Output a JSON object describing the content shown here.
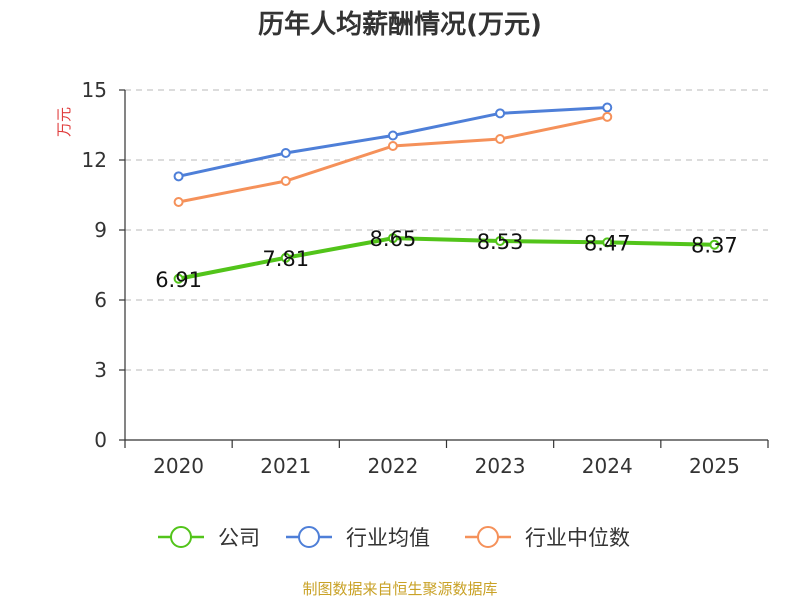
{
  "chart_data": {
    "type": "line",
    "title": "历年人均薪酬情况(万元)",
    "ylabel": "万元",
    "xlabel": "",
    "categories": [
      "2020",
      "2021",
      "2022",
      "2023",
      "2024",
      "2025"
    ],
    "ylim": [
      0,
      15
    ],
    "yticks": [
      "0",
      "3",
      "6",
      "9",
      "12",
      "15"
    ],
    "grid": "horizontal dashed",
    "legend_position": "bottom",
    "series": [
      {
        "name": "公司",
        "color": "#52c41a",
        "values": [
          6.91,
          7.81,
          8.65,
          8.53,
          8.47,
          8.37
        ],
        "labels": [
          "6.91",
          "7.81",
          "8.65",
          "8.53",
          "8.47",
          "8.37"
        ]
      },
      {
        "name": "行业均值",
        "color": "#4e7fd8",
        "values": [
          11.3,
          12.3,
          13.05,
          14.0,
          14.25,
          null
        ]
      },
      {
        "name": "行业中位数",
        "color": "#f5915a",
        "values": [
          10.2,
          11.1,
          12.6,
          12.9,
          13.85,
          null
        ]
      }
    ]
  },
  "source": "制图数据来自恒生聚源数据库"
}
